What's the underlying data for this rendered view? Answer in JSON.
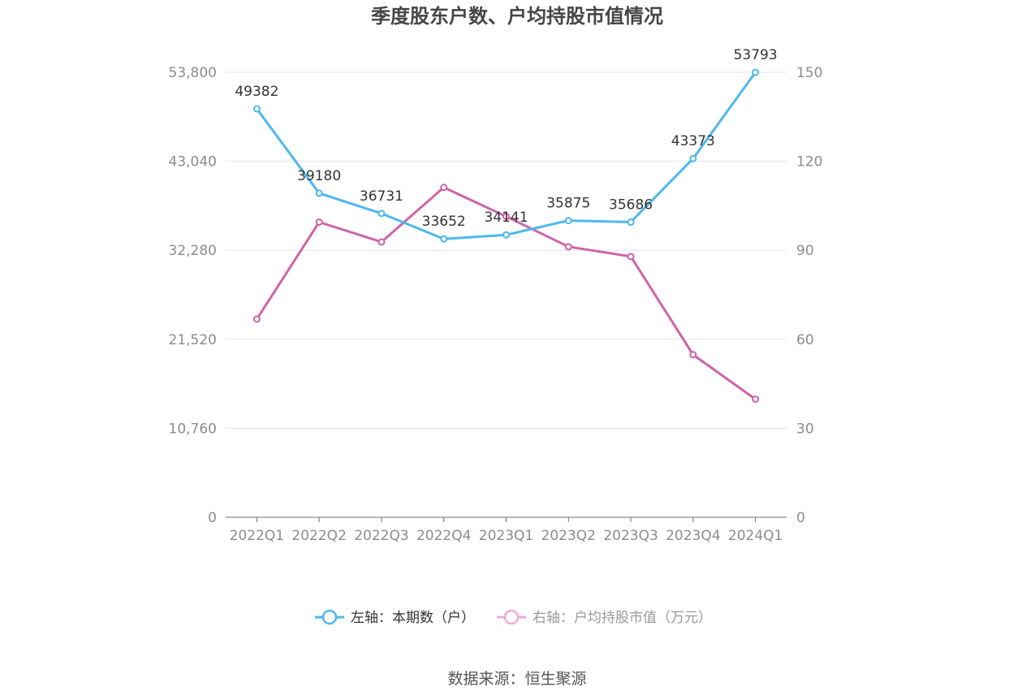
{
  "chart_data": {
    "type": "line",
    "title": "季度股东户数、户均持股市值情况",
    "categories": [
      "2022Q1",
      "2022Q2",
      "2022Q3",
      "2022Q4",
      "2023Q1",
      "2023Q2",
      "2023Q3",
      "2023Q4",
      "2024Q1"
    ],
    "left_axis": {
      "ticks": [
        "0",
        "10,760",
        "21,520",
        "32,280",
        "43,040",
        "53,800"
      ],
      "ylim": [
        0,
        53800
      ]
    },
    "right_axis": {
      "ticks": [
        "0",
        "30",
        "60",
        "90",
        "120",
        "150"
      ],
      "ylim": [
        0,
        150
      ]
    },
    "series": [
      {
        "name": "左轴：本期数（户）",
        "axis": "left",
        "color": "#4db8ef",
        "values": [
          49382,
          39180,
          36731,
          33652,
          34141,
          35875,
          35686,
          43373,
          53793
        ],
        "labels": [
          "49382",
          "39180",
          "36731",
          "33652",
          "34141",
          "35875",
          "35686",
          "43373",
          "53793"
        ]
      },
      {
        "name": "右轴：户均持股市值（万元）",
        "axis": "right",
        "color": "#d063a8",
        "values": [
          66.8,
          99.5,
          92.8,
          111.2,
          101.4,
          91.2,
          87.9,
          54.8,
          39.8
        ]
      }
    ],
    "legend": "bottom-center",
    "grid": true
  },
  "source": "数据来源：恒生聚源"
}
